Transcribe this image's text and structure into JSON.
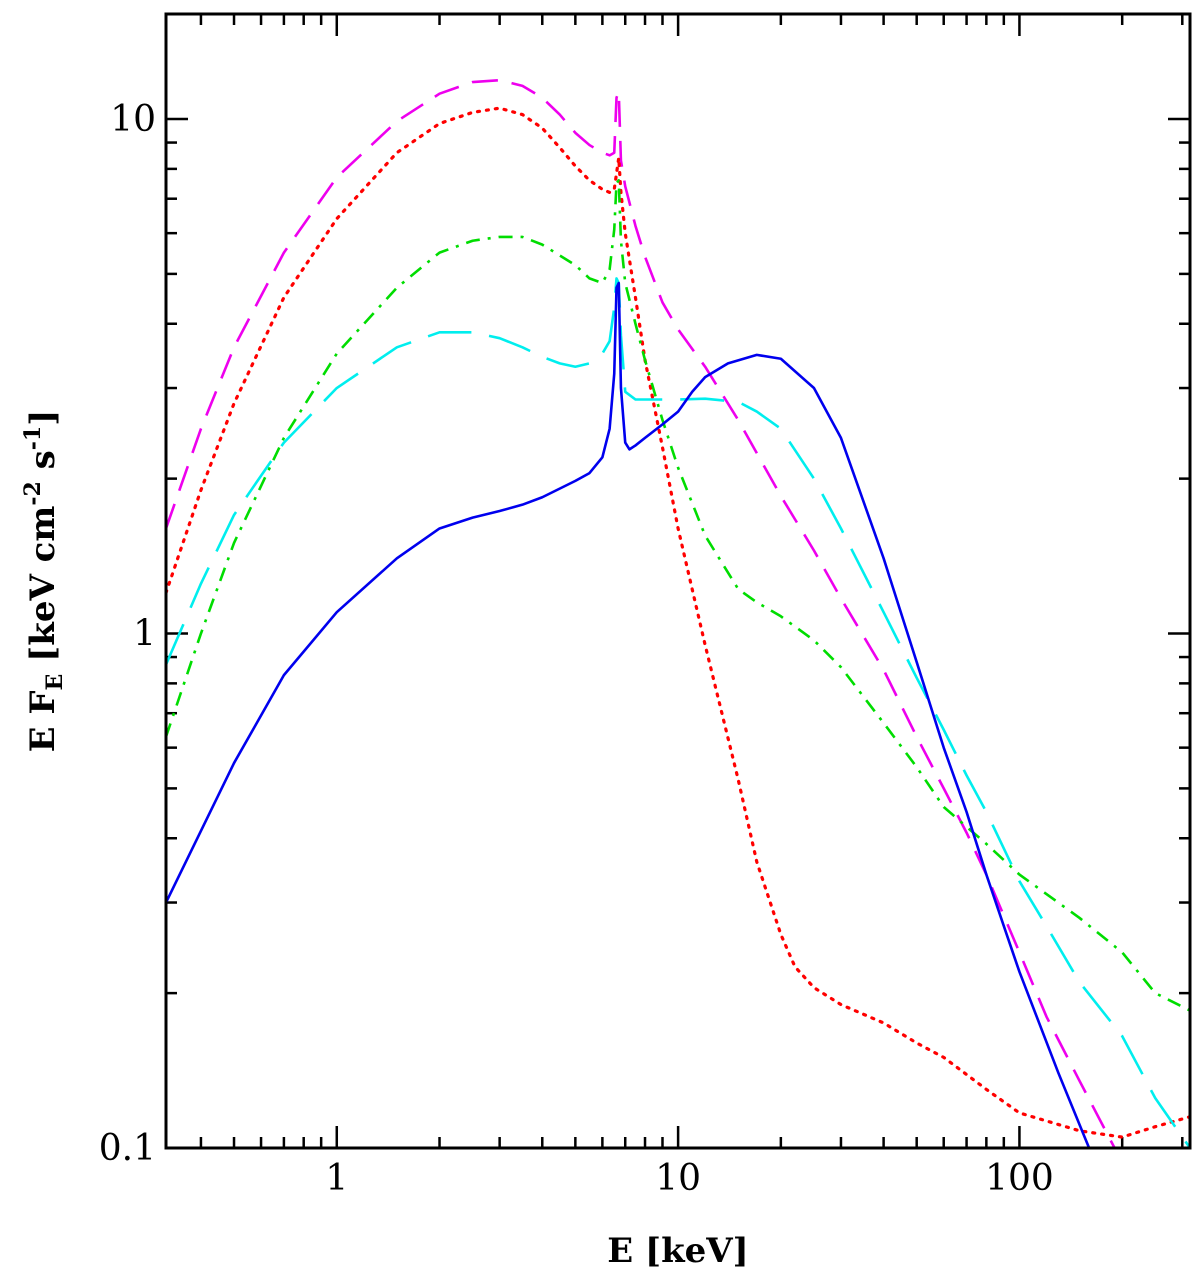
{
  "chart_data": {
    "type": "line",
    "title": "",
    "xlabel": "E [keV]",
    "ylabel": "E F_E [keV cm^-2 s^-1]",
    "ylabel_parts": {
      "main": "E F",
      "sub": "E",
      "unit_open": " [keV cm",
      "exp1": "-2",
      "mid": " s",
      "exp2": "-1",
      "close": "]"
    },
    "xscale": "log",
    "yscale": "log",
    "xlim": [
      0.316,
      316
    ],
    "ylim": [
      0.1,
      16
    ],
    "xticks_major": [
      1,
      10,
      100
    ],
    "xtick_labels": [
      "1",
      "10",
      "100"
    ],
    "yticks_major": [
      0.1,
      1,
      10
    ],
    "ytick_labels": [
      "0.1",
      "1",
      "10"
    ],
    "grid": false,
    "legend": "none",
    "series": [
      {
        "name": "magenta dashed",
        "color": "#ee00ee",
        "style": "dashed",
        "x": [
          0.316,
          0.4,
          0.5,
          0.7,
          1.0,
          1.5,
          2.0,
          2.5,
          3.0,
          3.5,
          4.0,
          4.5,
          5.0,
          5.5,
          6.0,
          6.3,
          6.5,
          6.6,
          6.7,
          6.8,
          7.0,
          7.5,
          8.0,
          9.0,
          10,
          12,
          15,
          20,
          25,
          30,
          40,
          50,
          60,
          70,
          80,
          100,
          120,
          150,
          190
        ],
        "y": [
          1.6,
          2.5,
          3.6,
          5.5,
          7.7,
          9.9,
          11.2,
          11.8,
          11.9,
          11.6,
          11.0,
          10.2,
          9.4,
          8.9,
          8.6,
          8.5,
          8.6,
          11.0,
          11.3,
          8.3,
          7.4,
          6.2,
          5.4,
          4.4,
          3.9,
          3.3,
          2.6,
          1.85,
          1.45,
          1.17,
          0.85,
          0.63,
          0.5,
          0.41,
          0.34,
          0.24,
          0.18,
          0.135,
          0.1
        ]
      },
      {
        "name": "red dotted",
        "color": "#ff0000",
        "style": "dotted",
        "x": [
          0.316,
          0.4,
          0.5,
          0.7,
          1.0,
          1.5,
          2.0,
          2.5,
          3.0,
          3.5,
          4.0,
          4.5,
          5.0,
          5.5,
          6.0,
          6.3,
          6.5,
          6.7,
          6.8,
          7.0,
          7.5,
          8.0,
          9.0,
          10,
          12,
          15,
          17,
          20,
          22,
          25,
          30,
          40,
          50,
          60,
          80,
          100,
          150,
          200,
          250,
          316
        ],
        "y": [
          1.2,
          1.9,
          2.8,
          4.5,
          6.4,
          8.6,
          9.8,
          10.3,
          10.5,
          10.2,
          9.6,
          8.8,
          8.1,
          7.6,
          7.3,
          7.2,
          7.3,
          8.4,
          7.2,
          6.0,
          4.5,
          3.4,
          2.3,
          1.6,
          0.95,
          0.52,
          0.36,
          0.26,
          0.225,
          0.205,
          0.19,
          0.175,
          0.16,
          0.15,
          0.13,
          0.117,
          0.108,
          0.105,
          0.11,
          0.115
        ]
      },
      {
        "name": "green dash-dot",
        "color": "#00dd00",
        "style": "dashdot",
        "x": [
          0.316,
          0.4,
          0.5,
          0.7,
          1.0,
          1.5,
          2.0,
          2.5,
          3.0,
          3.5,
          4.0,
          5.0,
          5.5,
          6.0,
          6.3,
          6.5,
          6.6,
          6.7,
          6.8,
          7.0,
          7.5,
          8.0,
          9.0,
          10,
          12,
          15,
          17,
          20,
          25,
          30,
          40,
          50,
          60,
          80,
          100,
          150,
          200,
          250,
          316
        ],
        "y": [
          0.63,
          1.0,
          1.5,
          2.4,
          3.5,
          4.7,
          5.5,
          5.8,
          5.9,
          5.9,
          5.7,
          5.2,
          4.9,
          4.8,
          5.1,
          6.1,
          7.5,
          7.6,
          5.8,
          4.8,
          4.0,
          3.4,
          2.6,
          2.1,
          1.55,
          1.22,
          1.15,
          1.08,
          0.97,
          0.86,
          0.67,
          0.55,
          0.46,
          0.39,
          0.34,
          0.28,
          0.24,
          0.2,
          0.185
        ]
      },
      {
        "name": "cyan long-dashed",
        "color": "#00eeee",
        "style": "longdash",
        "x": [
          0.316,
          0.4,
          0.5,
          0.7,
          1.0,
          1.5,
          2.0,
          2.5,
          3.0,
          3.5,
          4.0,
          4.5,
          5.0,
          5.5,
          6.0,
          6.3,
          6.5,
          6.6,
          6.7,
          6.8,
          7.0,
          7.5,
          8.0,
          9.0,
          10,
          12,
          15,
          17,
          20,
          25,
          30,
          40,
          50,
          60,
          70,
          80,
          100,
          120,
          150,
          200,
          250,
          316
        ],
        "y": [
          0.87,
          1.25,
          1.7,
          2.35,
          3.0,
          3.6,
          3.85,
          3.85,
          3.75,
          3.6,
          3.45,
          3.35,
          3.3,
          3.35,
          3.5,
          3.7,
          4.3,
          4.9,
          4.8,
          3.8,
          2.95,
          2.85,
          2.85,
          2.85,
          2.85,
          2.86,
          2.82,
          2.7,
          2.5,
          2.0,
          1.6,
          1.1,
          0.82,
          0.65,
          0.53,
          0.45,
          0.33,
          0.27,
          0.21,
          0.165,
          0.125,
          0.1
        ]
      },
      {
        "name": "blue solid",
        "color": "#0000ee",
        "style": "solid",
        "x": [
          0.316,
          0.5,
          0.7,
          1.0,
          1.5,
          2.0,
          2.5,
          3.0,
          3.5,
          4.0,
          5.0,
          5.5,
          6.0,
          6.3,
          6.5,
          6.6,
          6.7,
          6.8,
          7.0,
          7.2,
          7.5,
          8.0,
          9.0,
          10,
          11,
          12,
          14,
          17,
          20,
          25,
          30,
          40,
          50,
          60,
          70,
          80,
          90,
          100,
          130,
          160
        ],
        "y": [
          0.3,
          0.56,
          0.83,
          1.1,
          1.4,
          1.6,
          1.68,
          1.73,
          1.78,
          1.84,
          1.98,
          2.05,
          2.2,
          2.5,
          3.2,
          4.7,
          4.8,
          3.0,
          2.35,
          2.28,
          2.32,
          2.4,
          2.55,
          2.7,
          2.95,
          3.15,
          3.35,
          3.48,
          3.42,
          3.0,
          2.4,
          1.4,
          0.88,
          0.6,
          0.45,
          0.34,
          0.27,
          0.22,
          0.14,
          0.1
        ]
      }
    ]
  }
}
